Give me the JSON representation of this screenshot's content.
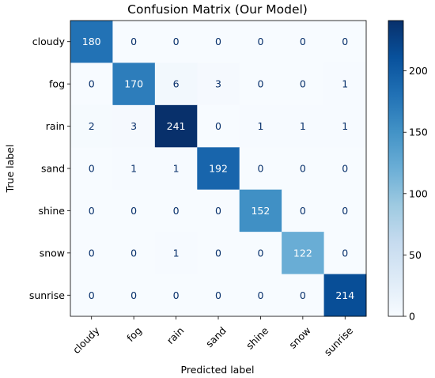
{
  "chart_data": {
    "type": "heatmap",
    "title": "Confusion Matrix (Our Model)",
    "xlabel": "Predicted label",
    "ylabel": "True label",
    "x_categories": [
      "cloudy",
      "fog",
      "rain",
      "sand",
      "shine",
      "snow",
      "sunrise"
    ],
    "y_categories": [
      "cloudy",
      "fog",
      "rain",
      "sand",
      "shine",
      "snow",
      "sunrise"
    ],
    "values": [
      [
        180,
        0,
        0,
        0,
        0,
        0,
        0
      ],
      [
        0,
        170,
        6,
        3,
        0,
        0,
        1
      ],
      [
        2,
        3,
        241,
        0,
        1,
        1,
        1
      ],
      [
        0,
        1,
        1,
        192,
        0,
        0,
        0
      ],
      [
        0,
        0,
        0,
        0,
        152,
        0,
        0
      ],
      [
        0,
        0,
        1,
        0,
        0,
        122,
        0
      ],
      [
        0,
        0,
        0,
        0,
        0,
        0,
        214
      ]
    ],
    "colormap": "Blues",
    "vmin": 0,
    "vmax": 241,
    "colorbar_ticks": [
      0,
      50,
      100,
      150,
      200
    ],
    "grid": false
  }
}
